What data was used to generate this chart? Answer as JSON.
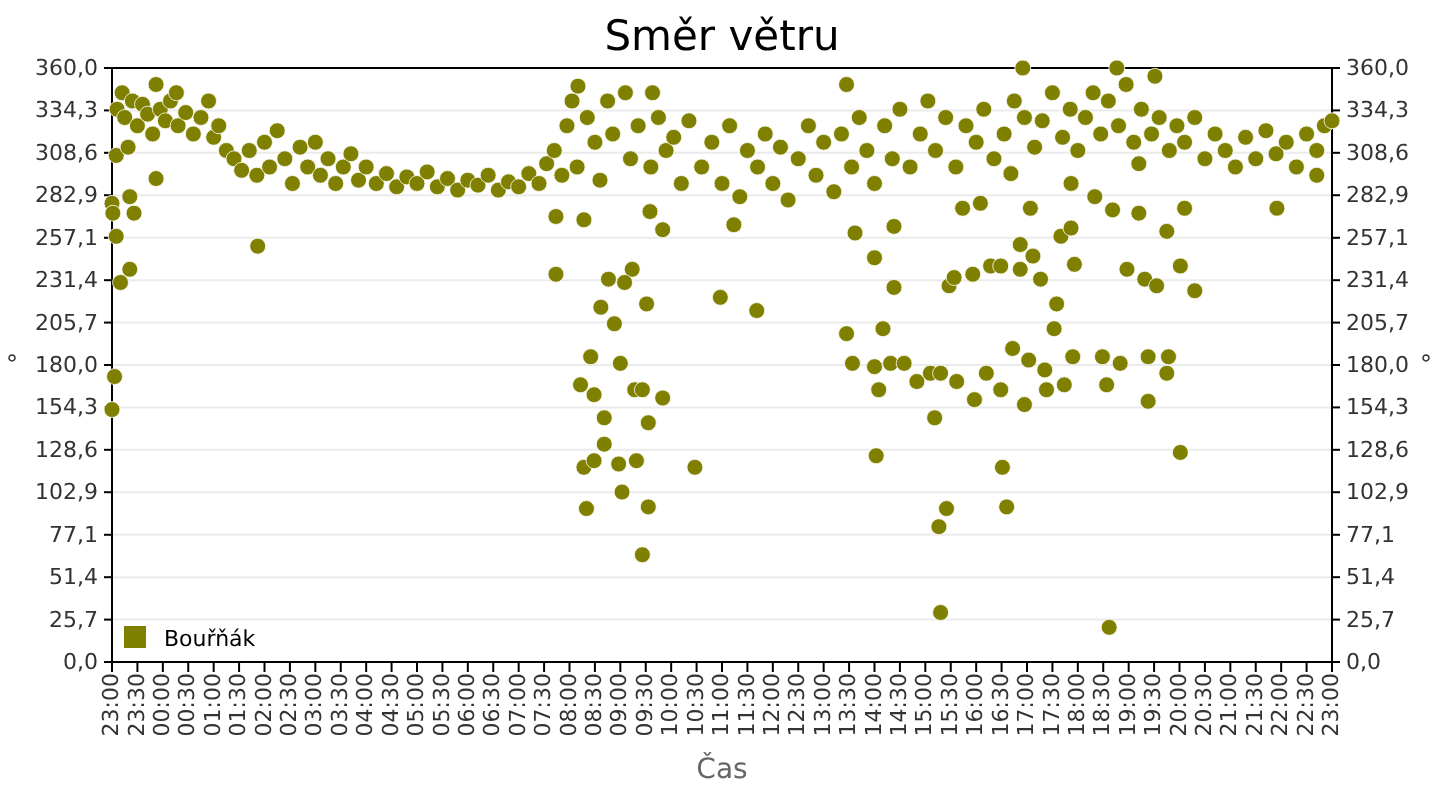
{
  "chart_data": {
    "type": "scatter",
    "title": "Směr větru",
    "xlabel": "Čas",
    "ylabel": "°",
    "y2label": "°",
    "series": [
      {
        "name": "Bouřňák",
        "color": "#808000",
        "marker": "circle",
        "x": [
          "2000-01-01T23:06",
          "2000-01-01T23:12",
          "2000-01-01T23:15",
          "2000-01-01T23:24",
          "2000-01-01T23:30",
          "2000-01-01T23:36",
          "2000-01-01T23:42",
          "2000-01-01T23:48",
          "2000-01-01T23:57",
          "2000-01-02T00:03",
          "2000-01-02T00:09",
          "2000-01-02T00:18",
          "2000-01-02T00:27",
          "2000-01-02T00:36",
          "2000-01-02T00:45",
          "2000-01-02T00:54",
          "2000-01-02T01:00",
          "2000-01-02T01:06",
          "2000-01-02T01:15",
          "2000-01-02T01:24",
          "2000-01-02T01:33",
          "2000-01-02T01:42",
          "2000-01-02T01:51",
          "2000-01-02T02:00",
          "2000-01-02T02:06",
          "2000-01-02T02:15",
          "2000-01-02T02:24",
          "2000-01-02T02:33",
          "2000-01-02T02:42",
          "2000-01-02T02:51",
          "2000-01-02T03:00",
          "2000-01-02T03:06",
          "2000-01-02T03:15",
          "2000-01-02T03:24",
          "2000-01-02T03:33",
          "2000-01-02T03:42",
          "2000-01-02T03:51",
          "2000-01-02T04:00",
          "2000-01-02T04:12",
          "2000-01-02T04:24",
          "2000-01-02T04:36",
          "2000-01-02T04:48",
          "2000-01-02T05:00",
          "2000-01-02T05:12",
          "2000-01-02T05:24",
          "2000-01-02T05:36",
          "2000-01-02T05:48",
          "2000-01-02T06:00",
          "2000-01-02T06:12",
          "2000-01-02T06:24",
          "2000-01-02T06:36",
          "2000-01-02T06:48",
          "2000-01-02T07:00",
          "2000-01-02T07:12",
          "2000-01-02T07:24",
          "2000-01-02T07:33",
          "2000-01-02T07:42",
          "2000-01-02T07:51",
          "2000-01-02T07:57",
          "2000-01-02T08:03",
          "2000-01-02T08:09",
          "2000-01-02T08:21",
          "2000-01-02T08:30",
          "2000-01-02T08:36",
          "2000-01-02T08:45",
          "2000-01-02T08:51",
          "2000-01-02T09:06",
          "2000-01-02T09:12",
          "2000-01-02T09:21",
          "2000-01-02T09:36",
          "2000-01-02T09:45",
          "2000-01-02T09:54",
          "2000-01-02T10:03",
          "2000-01-02T10:12",
          "2000-01-02T10:21",
          "2000-01-02T10:36",
          "2000-01-02T10:48",
          "2000-01-02T11:00",
          "2000-01-02T11:09",
          "2000-01-02T11:21",
          "2000-01-02T11:30",
          "2000-01-02T11:42",
          "2000-01-02T11:51",
          "2000-01-02T12:00",
          "2000-01-02T12:09",
          "2000-01-02T12:18",
          "2000-01-02T12:30",
          "2000-01-02T12:42",
          "2000-01-02T12:51",
          "2000-01-02T13:00",
          "2000-01-02T13:12",
          "2000-01-02T13:21",
          "2000-01-02T13:33",
          "2000-01-02T13:42",
          "2000-01-02T13:51",
          "2000-01-02T14:00",
          "2000-01-02T14:12",
          "2000-01-02T14:21",
          "2000-01-02T14:30",
          "2000-01-02T14:42",
          "2000-01-02T14:54",
          "2000-01-02T15:03",
          "2000-01-02T15:12",
          "2000-01-02T15:24",
          "2000-01-02T15:36",
          "2000-01-02T15:48",
          "2000-01-02T16:00",
          "2000-01-02T16:09",
          "2000-01-02T16:21",
          "2000-01-02T16:33",
          "2000-01-02T16:45",
          "2000-01-02T16:57",
          "2000-01-02T17:09",
          "2000-01-02T17:18",
          "2000-01-02T17:30",
          "2000-01-02T17:42",
          "2000-01-02T17:51",
          "2000-01-02T18:00",
          "2000-01-02T18:09",
          "2000-01-02T18:18",
          "2000-01-02T18:27",
          "2000-01-02T18:36",
          "2000-01-02T18:48",
          "2000-01-02T18:57",
          "2000-01-02T19:06",
          "2000-01-02T19:15",
          "2000-01-02T19:27",
          "2000-01-02T19:36",
          "2000-01-02T19:48",
          "2000-01-02T19:57",
          "2000-01-02T20:06",
          "2000-01-02T20:18",
          "2000-01-02T20:30",
          "2000-01-02T20:42",
          "2000-01-02T20:54",
          "2000-01-02T21:06",
          "2000-01-02T21:18",
          "2000-01-02T21:30",
          "2000-01-02T21:42",
          "2000-01-02T21:54",
          "2000-01-02T22:06",
          "2000-01-02T22:18",
          "2000-01-02T22:30",
          "2000-01-02T22:42",
          "2000-01-02T22:51",
          "2000-01-02T23:00",
          "2000-01-01T23:00",
          "2000-01-01T23:03",
          "2000-01-01T23:00",
          "2000-01-01T23:01",
          "2000-01-01T23:05",
          "2000-01-01T23:10",
          "2000-01-01T23:21",
          "2000-01-01T23:26",
          "2000-01-01T23:21",
          "2000-01-01T23:05",
          "2000-01-01T23:19",
          "2000-01-01T23:52",
          "2000-01-01T23:52",
          "2000-01-02T00:16",
          "2000-01-02T01:52",
          "2000-01-02T07:44",
          "2000-01-02T07:44",
          "2000-01-02T08:17",
          "2000-01-02T08:10",
          "2000-01-02T08:13",
          "2000-01-02T08:17",
          "2000-01-02T08:20",
          "2000-01-02T08:29",
          "2000-01-02T08:25",
          "2000-01-02T08:29",
          "2000-01-02T08:41",
          "2000-01-02T08:41",
          "2000-01-02T08:37",
          "2000-01-02T08:46",
          "2000-01-02T08:53",
          "2000-01-02T09:00",
          "2000-01-02T08:58",
          "2000-01-02T09:02",
          "2000-01-02T09:14",
          "2000-01-02T09:05",
          "2000-01-02T09:17",
          "2000-01-02T09:19",
          "2000-01-02T09:26",
          "2000-01-02T09:31",
          "2000-01-02T09:33",
          "2000-01-02T09:33",
          "2000-01-02T09:26",
          "2000-01-02T09:50",
          "2000-01-02T10:28",
          "2000-01-02T09:35",
          "2000-01-02T09:50",
          "2000-01-02T09:38",
          "2000-01-02T10:58",
          "2000-01-02T11:41",
          "2000-01-02T11:14",
          "2000-01-02T13:27",
          "2000-01-02T13:27",
          "2000-01-02T13:34",
          "2000-01-02T13:37",
          "2000-01-02T14:00",
          "2000-01-02T14:00",
          "2000-01-02T14:05",
          "2000-01-02T14:10",
          "2000-01-02T14:19",
          "2000-01-02T14:23",
          "2000-01-02T14:23",
          "2000-01-02T14:35",
          "2000-01-02T14:50",
          "2000-01-02T15:06",
          "2000-01-02T15:11",
          "2000-01-02T15:18",
          "2000-01-02T15:28",
          "2000-01-02T15:34",
          "2000-01-02T15:37",
          "2000-01-02T15:44",
          "2000-01-02T15:56",
          "2000-01-02T15:58",
          "2000-01-02T16:05",
          "2000-01-02T16:12",
          "2000-01-02T16:17",
          "2000-01-02T16:29",
          "2000-01-02T16:29",
          "2000-01-02T16:41",
          "2000-01-02T16:43",
          "2000-01-02T16:52",
          "2000-01-02T16:52",
          "2000-01-02T16:57",
          "2000-01-02T17:02",
          "2000-01-02T17:04",
          "2000-01-02T17:07",
          "2000-01-02T17:16",
          "2000-01-02T17:21",
          "2000-01-02T17:23",
          "2000-01-02T17:32",
          "2000-01-02T17:35",
          "2000-01-02T17:40",
          "2000-01-02T17:44",
          "2000-01-02T17:52",
          "2000-01-02T17:54",
          "2000-01-02T17:56",
          "2000-01-02T17:52",
          "2000-01-02T18:29",
          "2000-01-02T18:34",
          "2000-01-02T18:20",
          "2000-01-02T18:41",
          "2000-01-02T18:50",
          "2000-01-02T18:58",
          "2000-01-02T19:12",
          "2000-01-02T19:12",
          "2000-01-02T19:19",
          "2000-01-02T19:23",
          "2000-01-02T19:23",
          "2000-01-02T19:33",
          "2000-01-02T19:45",
          "2000-01-02T19:47",
          "2000-01-02T19:45",
          "2000-01-02T20:01",
          "2000-01-02T20:06",
          "2000-01-02T20:18",
          "2000-01-02T21:55",
          "2000-01-02T22:42",
          "2000-01-02T16:55",
          "2000-01-02T18:46",
          "2000-01-02T19:31",
          "2000-01-02T14:02",
          "2000-01-02T15:11",
          "2000-01-02T15:16",
          "2000-01-02T15:25",
          "2000-01-02T15:18",
          "2000-01-02T15:58",
          "2000-01-02T16:31",
          "2000-01-02T16:36",
          "2000-01-02T18:37",
          "2000-01-02T20:01"
        ],
        "values": [
          335,
          345,
          330,
          340,
          325,
          338,
          332,
          320,
          335,
          328,
          340,
          325,
          333,
          320,
          330,
          340,
          318,
          325,
          310,
          305,
          298,
          310,
          295,
          315,
          300,
          322,
          305,
          290,
          312,
          300,
          315,
          295,
          305,
          290,
          300,
          308,
          292,
          300,
          290,
          296,
          288,
          294,
          290,
          297,
          288,
          293,
          286,
          292,
          289,
          295,
          286,
          291,
          288,
          296,
          290,
          302,
          310,
          295,
          325,
          340,
          300,
          330,
          315,
          292,
          340,
          320,
          345,
          305,
          325,
          300,
          330,
          310,
          318,
          290,
          328,
          300,
          315,
          290,
          325,
          282,
          310,
          300,
          320,
          290,
          312,
          280,
          305,
          325,
          295,
          315,
          285,
          320,
          300,
          330,
          310,
          290,
          325,
          305,
          335,
          300,
          320,
          340,
          310,
          330,
          300,
          325,
          315,
          335,
          305,
          320,
          340,
          330,
          312,
          328,
          345,
          318,
          335,
          310,
          330,
          345,
          320,
          340,
          325,
          350,
          315,
          335,
          320,
          330,
          310,
          325,
          315,
          330,
          305,
          320,
          310,
          300,
          318,
          305,
          322,
          308,
          315,
          300,
          320,
          310,
          325,
          328,
          153,
          173,
          278,
          272,
          258,
          230,
          238,
          272,
          282,
          307,
          312,
          293,
          350,
          345,
          252,
          235,
          270,
          268,
          349,
          168,
          118,
          93,
          122,
          185,
          162,
          148,
          132,
          215,
          232,
          205,
          181,
          120,
          103,
          238,
          230,
          165,
          122,
          165,
          217,
          145,
          94,
          65,
          160,
          118,
          273,
          262,
          345,
          221,
          213,
          265,
          350,
          199,
          181,
          260,
          245,
          179,
          165,
          202,
          181,
          227,
          264,
          181,
          170,
          175,
          148,
          175,
          228,
          233,
          170,
          275,
          235,
          159,
          278,
          175,
          240,
          240,
          165,
          296,
          190,
          253,
          238,
          156,
          183,
          275,
          246,
          232,
          177,
          165,
          202,
          217,
          258,
          168,
          263,
          185,
          241,
          290,
          185,
          168,
          282,
          274,
          181,
          238,
          272,
          302,
          232,
          185,
          158,
          228,
          261,
          185,
          175,
          240,
          275,
          225,
          275,
          295,
          360,
          360,
          355,
          125,
          148,
          82,
          93,
          30,
          159,
          118,
          94,
          21,
          127
        ]
      }
    ],
    "xlim": [
      "2000-01-01T23:00",
      "2000-01-02T23:00"
    ],
    "ylim": [
      0,
      360
    ],
    "y2lim": [
      0,
      360
    ],
    "xticks": [
      {
        "value": "2000-01-01T23:00",
        "label": "23:00"
      },
      {
        "value": "2000-01-01T23:30",
        "label": "23:30"
      },
      {
        "value": "2000-01-02T00:00",
        "label": "00:00"
      },
      {
        "value": "2000-01-02T00:30",
        "label": "00:30"
      },
      {
        "value": "2000-01-02T01:00",
        "label": "01:00"
      },
      {
        "value": "2000-01-02T01:30",
        "label": "01:30"
      },
      {
        "value": "2000-01-02T02:00",
        "label": "02:00"
      },
      {
        "value": "2000-01-02T02:30",
        "label": "02:30"
      },
      {
        "value": "2000-01-02T03:00",
        "label": "03:00"
      },
      {
        "value": "2000-01-02T03:30",
        "label": "03:30"
      },
      {
        "value": "2000-01-02T04:00",
        "label": "04:00"
      },
      {
        "value": "2000-01-02T04:30",
        "label": "04:30"
      },
      {
        "value": "2000-01-02T05:00",
        "label": "05:00"
      },
      {
        "value": "2000-01-02T05:30",
        "label": "05:30"
      },
      {
        "value": "2000-01-02T06:00",
        "label": "06:00"
      },
      {
        "value": "2000-01-02T06:30",
        "label": "06:30"
      },
      {
        "value": "2000-01-02T07:00",
        "label": "07:00"
      },
      {
        "value": "2000-01-02T07:30",
        "label": "07:30"
      },
      {
        "value": "2000-01-02T08:00",
        "label": "08:00"
      },
      {
        "value": "2000-01-02T08:30",
        "label": "08:30"
      },
      {
        "value": "2000-01-02T09:00",
        "label": "09:00"
      },
      {
        "value": "2000-01-02T09:30",
        "label": "09:30"
      },
      {
        "value": "2000-01-02T10:00",
        "label": "10:00"
      },
      {
        "value": "2000-01-02T10:30",
        "label": "10:30"
      },
      {
        "value": "2000-01-02T11:00",
        "label": "11:00"
      },
      {
        "value": "2000-01-02T11:30",
        "label": "11:30"
      },
      {
        "value": "2000-01-02T12:00",
        "label": "12:00"
      },
      {
        "value": "2000-01-02T12:30",
        "label": "12:30"
      },
      {
        "value": "2000-01-02T13:00",
        "label": "13:00"
      },
      {
        "value": "2000-01-02T13:30",
        "label": "13:30"
      },
      {
        "value": "2000-01-02T14:00",
        "label": "14:00"
      },
      {
        "value": "2000-01-02T14:30",
        "label": "14:30"
      },
      {
        "value": "2000-01-02T15:00",
        "label": "15:00"
      },
      {
        "value": "2000-01-02T15:30",
        "label": "15:30"
      },
      {
        "value": "2000-01-02T16:00",
        "label": "16:00"
      },
      {
        "value": "2000-01-02T16:30",
        "label": "16:30"
      },
      {
        "value": "2000-01-02T17:00",
        "label": "17:00"
      },
      {
        "value": "2000-01-02T17:30",
        "label": "17:30"
      },
      {
        "value": "2000-01-02T18:00",
        "label": "18:00"
      },
      {
        "value": "2000-01-02T18:30",
        "label": "18:30"
      },
      {
        "value": "2000-01-02T19:00",
        "label": "19:00"
      },
      {
        "value": "2000-01-02T19:30",
        "label": "19:30"
      },
      {
        "value": "2000-01-02T20:00",
        "label": "20:00"
      },
      {
        "value": "2000-01-02T20:30",
        "label": "20:30"
      },
      {
        "value": "2000-01-02T21:00",
        "label": "21:00"
      },
      {
        "value": "2000-01-02T21:30",
        "label": "21:30"
      },
      {
        "value": "2000-01-02T22:00",
        "label": "22:00"
      },
      {
        "value": "2000-01-02T22:30",
        "label": "22:30"
      },
      {
        "value": "2000-01-02T23:00",
        "label": "23:00"
      }
    ],
    "yticks": [
      {
        "value": 0,
        "label": "0,0"
      },
      {
        "value": 25.7,
        "label": "25,7"
      },
      {
        "value": 51.4,
        "label": "51,4"
      },
      {
        "value": 77.1,
        "label": "77,1"
      },
      {
        "value": 102.9,
        "label": "102,9"
      },
      {
        "value": 128.6,
        "label": "128,6"
      },
      {
        "value": 154.3,
        "label": "154,3"
      },
      {
        "value": 180,
        "label": "180,0"
      },
      {
        "value": 205.7,
        "label": "205,7"
      },
      {
        "value": 231.4,
        "label": "231,4"
      },
      {
        "value": 257.1,
        "label": "257,1"
      },
      {
        "value": 282.9,
        "label": "282,9"
      },
      {
        "value": 308.6,
        "label": "308,6"
      },
      {
        "value": 334.3,
        "label": "334,3"
      },
      {
        "value": 360,
        "label": "360,0"
      }
    ],
    "y2ticks": [
      {
        "value": 0,
        "label": "0,0"
      },
      {
        "value": 25.7,
        "label": "25,7"
      },
      {
        "value": 51.4,
        "label": "51,4"
      },
      {
        "value": 77.1,
        "label": "77,1"
      },
      {
        "value": 102.9,
        "label": "102,9"
      },
      {
        "value": 128.6,
        "label": "128,6"
      },
      {
        "value": 154.3,
        "label": "154,3"
      },
      {
        "value": 180,
        "label": "180,0"
      },
      {
        "value": 205.7,
        "label": "205,7"
      },
      {
        "value": 231.4,
        "label": "231,4"
      },
      {
        "value": 257.1,
        "label": "257,1"
      },
      {
        "value": 282.9,
        "label": "282,9"
      },
      {
        "value": 308.6,
        "label": "308,6"
      },
      {
        "value": 334.3,
        "label": "334,3"
      },
      {
        "value": 360,
        "label": "360,0"
      }
    ],
    "grid": "y",
    "legend": "bottom left"
  }
}
